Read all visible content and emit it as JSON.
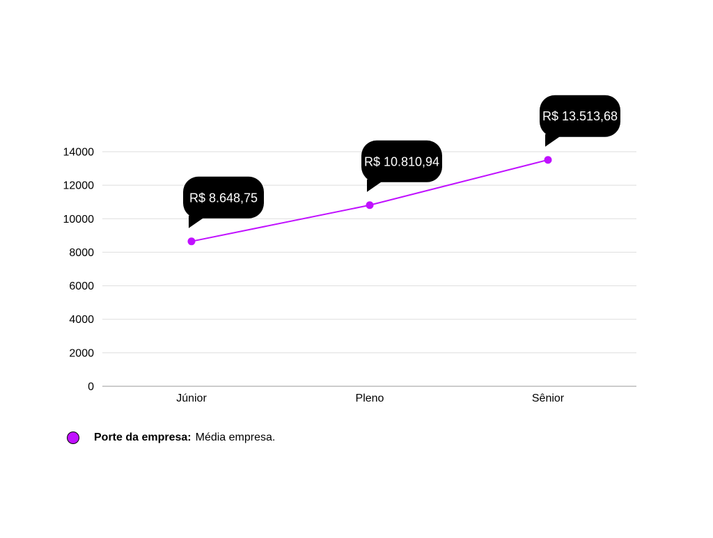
{
  "chart_data": {
    "type": "line",
    "categories": [
      "Júnior",
      "Pleno",
      "Sênior"
    ],
    "series": [
      {
        "values": [
          8648.75,
          10810.94,
          13513.68
        ],
        "data_labels": [
          "R$ 8.648,75",
          "R$ 10.810,94",
          "R$ 13.513,68"
        ],
        "color": "#c010ff"
      }
    ],
    "yticks": [
      0,
      2000,
      4000,
      6000,
      8000,
      10000,
      12000,
      14000
    ],
    "ylim": [
      0,
      14000
    ],
    "grid": true,
    "label_bubble_color": "#000000",
    "legend_position": "bottom-left"
  },
  "legend": {
    "label": "Porte da empresa:",
    "value": "Média empresa."
  }
}
